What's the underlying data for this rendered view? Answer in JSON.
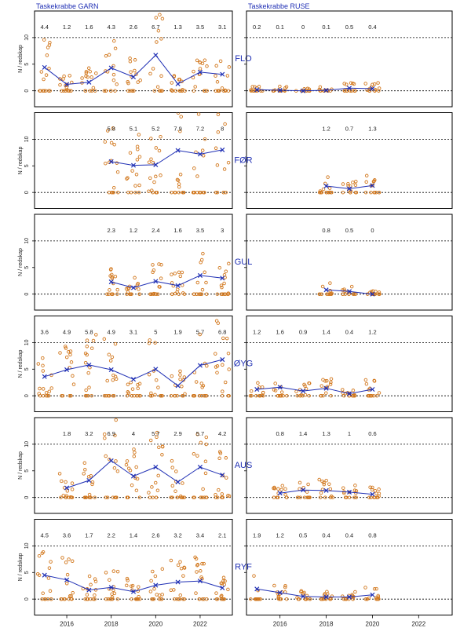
{
  "chart_data": {
    "type": "scatter",
    "title_left": "Taskekrabbe GARN",
    "title_right": "Taskekrabbe RUSE",
    "ylabel": "N / redskap",
    "ylim": [
      -3,
      15
    ],
    "yticks": [
      0,
      5,
      10
    ],
    "xlim": [
      2014.55,
      2023.45
    ],
    "xticks": [
      2016,
      2018,
      2020,
      2022
    ],
    "regions": [
      {
        "name": "FLO",
        "garn": {
          "years": [
            2015,
            2016,
            2017,
            2018,
            2019,
            2020,
            2021,
            2022,
            2023
          ],
          "means": [
            4.4,
            1.2,
            1.6,
            4.3,
            2.6,
            6.7,
            1.3,
            3.5,
            3.1
          ]
        },
        "ruse": {
          "years": [
            2015,
            2016,
            2017,
            2018,
            2019,
            2020
          ],
          "means": [
            0.2,
            0.1,
            0,
            0.1,
            0.5,
            0.4
          ]
        }
      },
      {
        "name": "FØR",
        "garn": {
          "years": [
            2018,
            2019,
            2020,
            2021,
            2022,
            2023
          ],
          "means": [
            5.8,
            5.1,
            5.2,
            7.9,
            7.2,
            8
          ]
        },
        "ruse": {
          "years": [
            2018,
            2019,
            2020
          ],
          "means": [
            1.2,
            0.7,
            1.3
          ]
        }
      },
      {
        "name": "GUL",
        "garn": {
          "years": [
            2018,
            2019,
            2020,
            2021,
            2022,
            2023
          ],
          "means": [
            2.3,
            1.2,
            2.4,
            1.6,
            3.5,
            3
          ]
        },
        "ruse": {
          "years": [
            2018,
            2019,
            2020
          ],
          "means": [
            0.8,
            0.5,
            0
          ]
        }
      },
      {
        "name": "ØYG",
        "garn": {
          "years": [
            2015,
            2016,
            2017,
            2018,
            2019,
            2020,
            2021,
            2022,
            2023
          ],
          "means": [
            3.6,
            4.9,
            5.8,
            4.9,
            3.1,
            5,
            1.9,
            5.7,
            6.8
          ]
        },
        "ruse": {
          "years": [
            2015,
            2016,
            2017,
            2018,
            2019,
            2020
          ],
          "means": [
            1.2,
            1.6,
            0.9,
            1.4,
            0.4,
            1.2
          ]
        }
      },
      {
        "name": "AUS",
        "garn": {
          "years": [
            2016,
            2017,
            2018,
            2019,
            2020,
            2021,
            2022,
            2023
          ],
          "means": [
            1.8,
            3.2,
            6.9,
            4,
            5.7,
            2.9,
            5.7,
            4.2
          ]
        },
        "ruse": {
          "years": [
            2016,
            2017,
            2018,
            2019,
            2020
          ],
          "means": [
            0.8,
            1.4,
            1.3,
            1,
            0.6
          ]
        }
      },
      {
        "name": "RYF",
        "garn": {
          "years": [
            2015,
            2016,
            2017,
            2018,
            2019,
            2020,
            2021,
            2022,
            2023
          ],
          "means": [
            4.5,
            3.6,
            1.7,
            2.2,
            1.4,
            2.6,
            3.2,
            3.4,
            2.1
          ]
        },
        "ruse": {
          "years": [
            2015,
            2016,
            2017,
            2018,
            2019,
            2020
          ],
          "means": [
            1.9,
            1.2,
            0.5,
            0.4,
            0.4,
            0.8
          ]
        }
      }
    ]
  },
  "colors": {
    "mean": "#1f2fb4",
    "points": "#d2781e",
    "title": "#1f2fb4",
    "region": "#1f2fb4"
  }
}
